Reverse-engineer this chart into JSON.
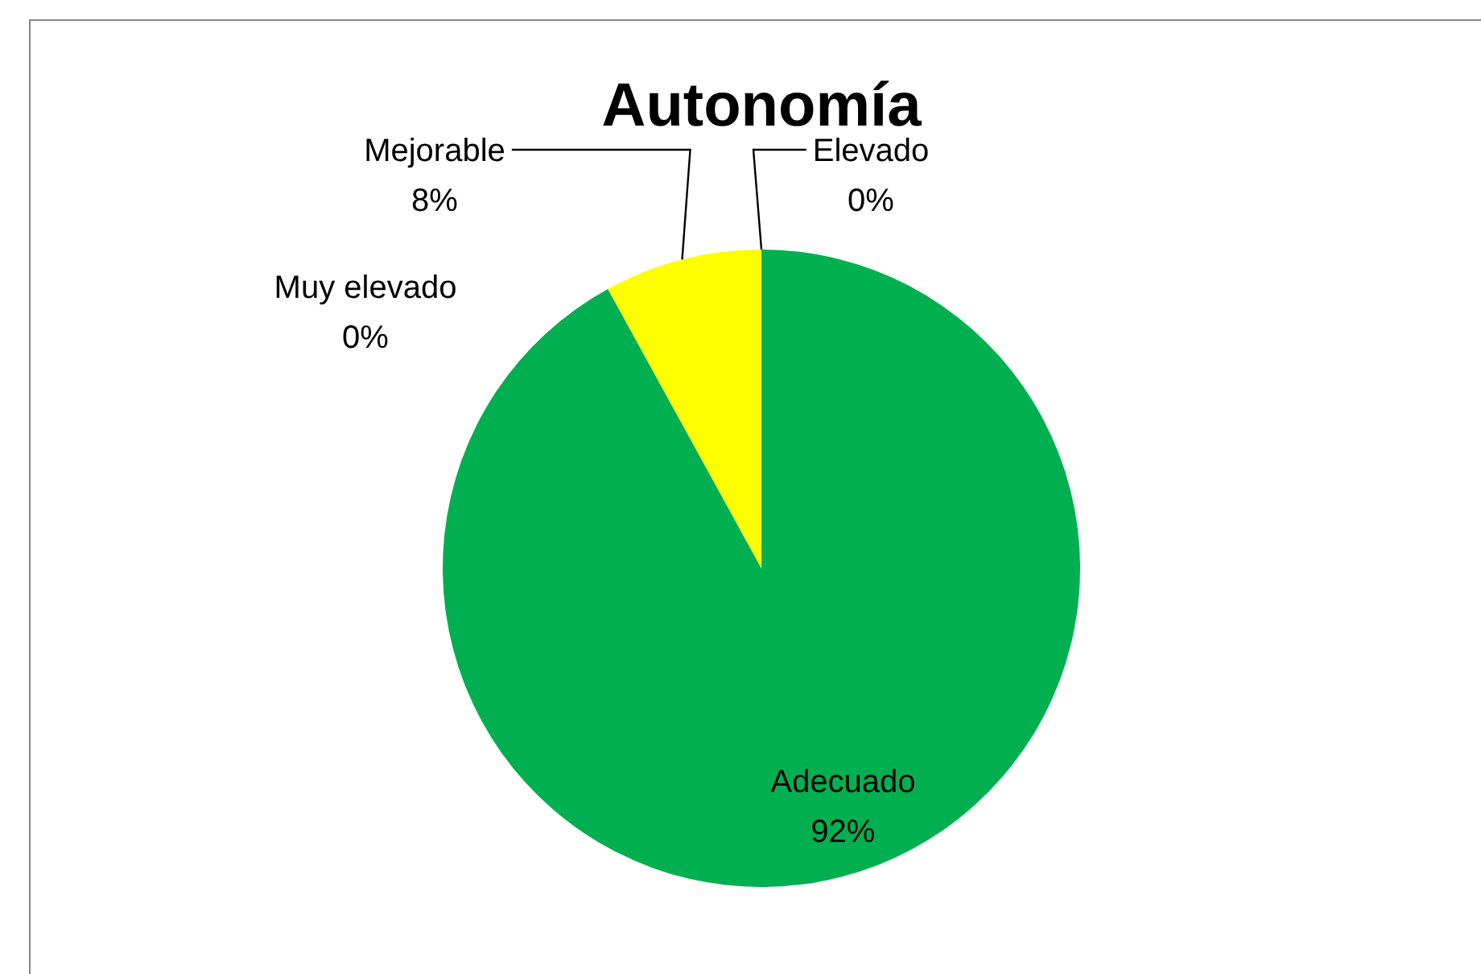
{
  "chart_data": {
    "type": "pie",
    "title": "Autonomía",
    "categories": [
      "Elevado",
      "Adecuado",
      "Mejorable",
      "Muy elevado"
    ],
    "values": [
      0,
      92,
      8,
      0
    ],
    "colors": [
      "#ff0000",
      "#00b050",
      "#ffff00",
      "#c00000"
    ],
    "value_labels": [
      "0%",
      "92%",
      "8%",
      "0%"
    ],
    "legend": false
  }
}
